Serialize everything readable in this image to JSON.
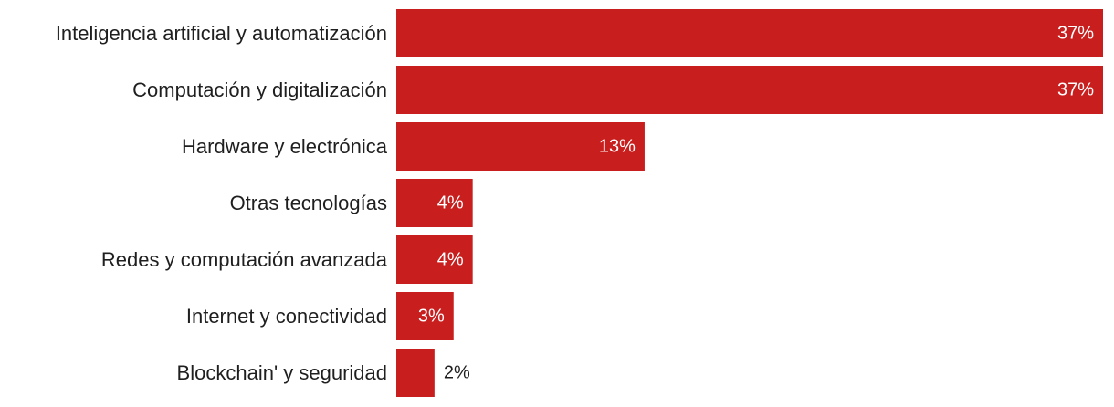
{
  "colors": {
    "bar": "#c81e1e",
    "label_inside": "#ffffff",
    "label_outside": "#1f1f1f",
    "text": "#1f1f1f"
  },
  "chart_data": {
    "type": "bar",
    "orientation": "horizontal",
    "categories": [
      "Inteligencia artificial y automatización",
      "Computación y digitalización",
      "Hardware y electrónica",
      "Otras tecnologías",
      "Redes y computación avanzada",
      "Internet y conectividad",
      "Blockchain' y seguridad"
    ],
    "values": [
      37,
      37,
      13,
      4,
      4,
      3,
      2
    ],
    "value_labels": [
      "37%",
      "37%",
      "13%",
      "4%",
      "4%",
      "3%",
      "2%"
    ],
    "xlim": [
      0,
      37
    ],
    "grid": false,
    "legend": "none"
  }
}
